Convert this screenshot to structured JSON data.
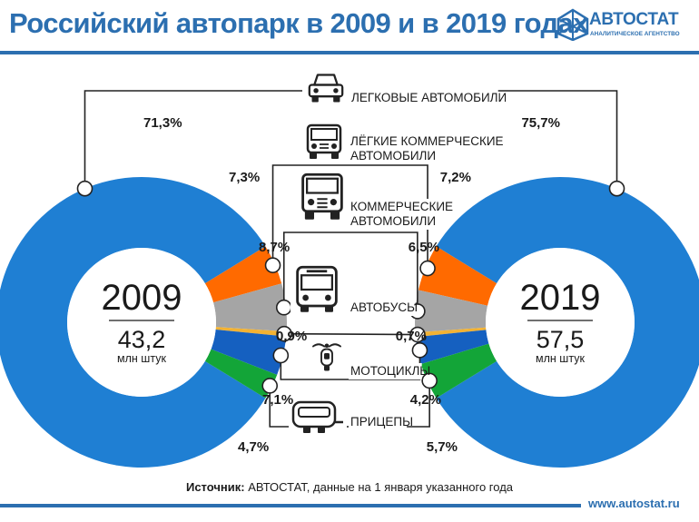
{
  "header": {
    "title": "Российский автопарк в 2009 и в 2019 годах",
    "logo_name": "АВТОСТАТ",
    "logo_subtitle": "АНАЛИТИЧЕСКОЕ АГЕНТСТВО"
  },
  "footer": {
    "source_label": "Источник:",
    "source_text": "АВТОСТАТ, данные на 1 января указанного года",
    "site_url": "www.autostat.ru"
  },
  "chart_data": {
    "type": "pie",
    "variant": "two-donuts",
    "categories": [
      "ЛЕГКОВЫЕ АВТОМОБИЛИ",
      "ЛЁГКИЕ КОММЕРЧЕСКИЕ АВТОМОБИЛИ",
      "КОММЕРЧЕСКИЕ АВТОМОБИЛИ",
      "АВТОБУСЫ",
      "МОТОЦИКЛЫ",
      "ПРИЦЕПЫ"
    ],
    "category_lines": [
      [
        "ЛЕГКОВЫЕ АВТОМОБИЛИ"
      ],
      [
        "ЛЁГКИЕ КОММЕРЧЕСКИЕ",
        "АВТОМОБИЛИ"
      ],
      [
        "КОММЕРЧЕСКИЕ",
        "АВТОМОБИЛИ"
      ],
      [
        "АВТОБУСЫ"
      ],
      [
        "МОТОЦИКЛЫ"
      ],
      [
        "ПРИЦЕПЫ"
      ]
    ],
    "icons": [
      "car-icon",
      "van-icon",
      "truck-icon",
      "bus-icon",
      "motorcycle-icon",
      "trailer-icon"
    ],
    "colors": [
      "#1f7fd3",
      "#ff6a00",
      "#a5a5a5",
      "#f2b233",
      "#1560c0",
      "#13a538"
    ],
    "series": [
      {
        "name": "2009",
        "total": "43,2",
        "unit": "млн штук",
        "values": [
          71.3,
          7.3,
          8.7,
          0.9,
          7.1,
          4.7
        ],
        "labels": [
          "71,3%",
          "7,3%",
          "8,7%",
          "0,9%",
          "7,1%",
          "4,7%"
        ]
      },
      {
        "name": "2019",
        "total": "57,5",
        "unit": "млн штук",
        "values": [
          75.7,
          7.2,
          6.5,
          0.7,
          4.2,
          5.7
        ],
        "labels": [
          "75,7%",
          "7,2%",
          "6,5%",
          "0,7%",
          "4,2%",
          "5,7%"
        ]
      }
    ]
  }
}
